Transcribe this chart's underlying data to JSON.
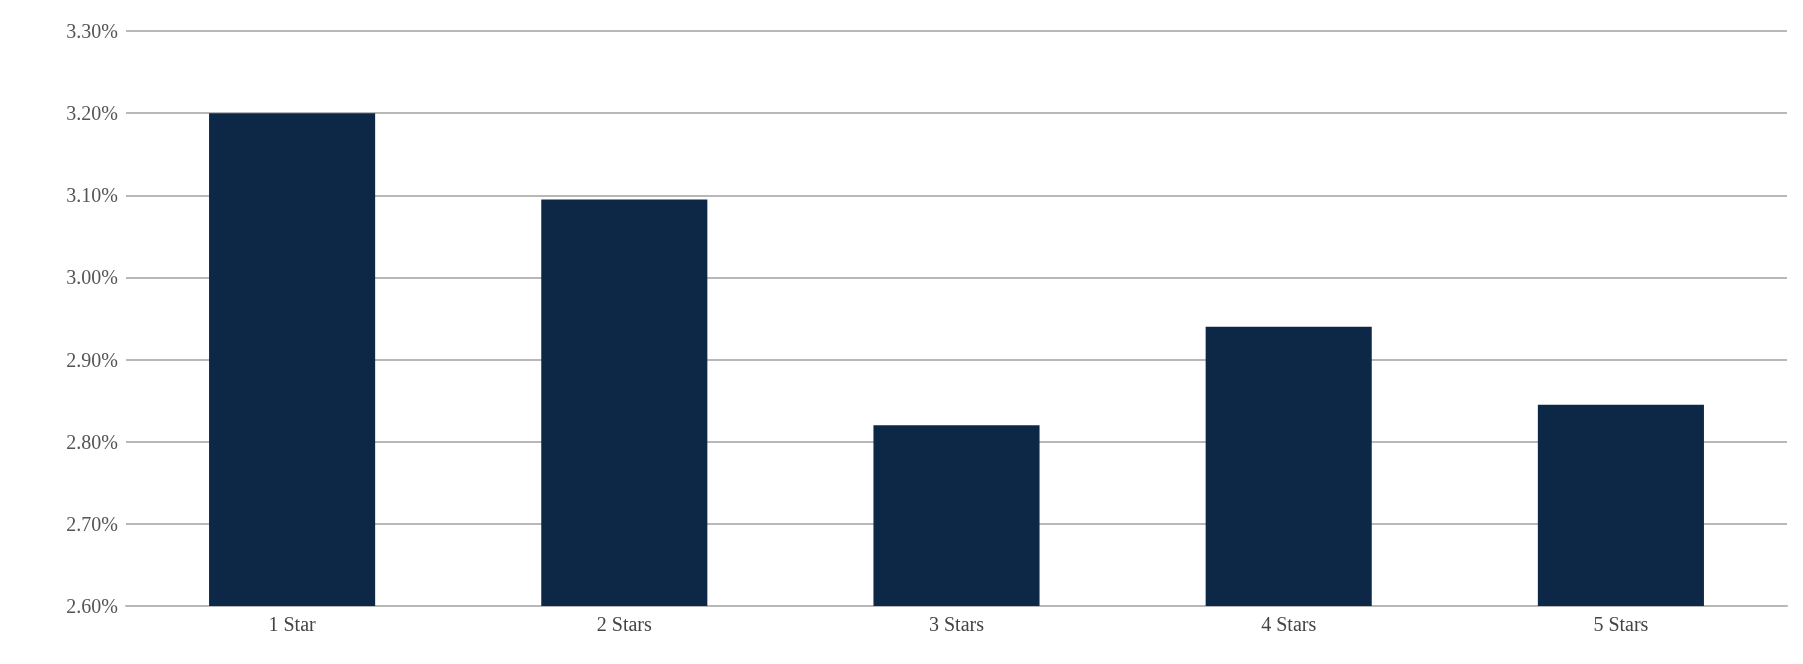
{
  "chart_data": {
    "type": "bar",
    "categories": [
      "1 Star",
      "2 Stars",
      "3 Stars",
      "4 Stars",
      "5 Stars"
    ],
    "values": [
      3.2,
      3.095,
      2.82,
      2.94,
      2.845
    ],
    "color": "#0d2846",
    "ylim": [
      2.6,
      3.3
    ],
    "yticks": [
      {
        "value": 2.6,
        "label": "2.60%"
      },
      {
        "value": 2.7,
        "label": "2.70%"
      },
      {
        "value": 2.8,
        "label": "2.80%"
      },
      {
        "value": 2.9,
        "label": "2.90%"
      },
      {
        "value": 3.0,
        "label": "3.00%"
      },
      {
        "value": 3.1,
        "label": "3.10%"
      },
      {
        "value": 3.2,
        "label": "3.20%"
      },
      {
        "value": 3.3,
        "label": "3.30%"
      }
    ],
    "grid": true
  }
}
